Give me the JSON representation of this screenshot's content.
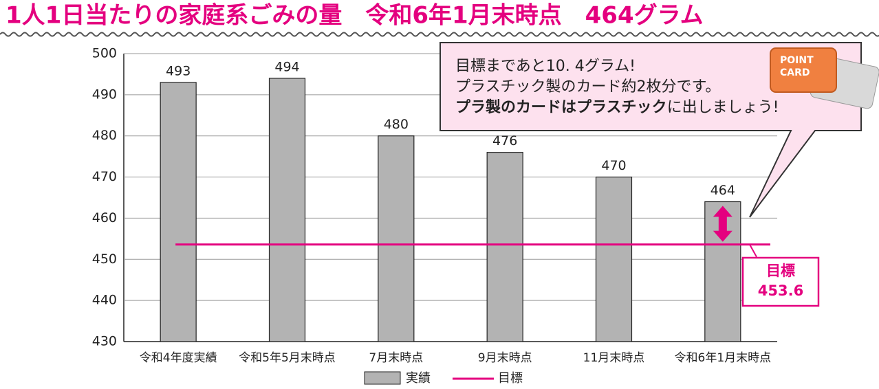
{
  "chart_data": {
    "type": "bar",
    "title": "1人1日当たりの家庭系ごみの量　令和6年1月末時点　464グラム",
    "categories": [
      "令和4年度実績",
      "令和5年5月末時点",
      "7月末時点",
      "9月末時点",
      "11月末時点",
      "令和6年1月末時点"
    ],
    "series": [
      {
        "name": "実績",
        "color": "#b3b3b3",
        "values": [
          493,
          494,
          480,
          476,
          470,
          464
        ]
      }
    ],
    "target": {
      "name": "目標",
      "value": 453.6,
      "color": "#e4007f"
    },
    "ylim": [
      430,
      500
    ],
    "yticks": [
      430,
      440,
      450,
      460,
      470,
      480,
      490,
      500
    ],
    "grid": true,
    "callout": {
      "lines": [
        "目標まであと10. 4グラム!",
        "プラスチック製のカード約2枚分です。"
      ],
      "bold": "プラ製のカードはプラスチック",
      "rest": "に出しましょう!"
    },
    "card": [
      "POINT",
      "CARD"
    ]
  }
}
